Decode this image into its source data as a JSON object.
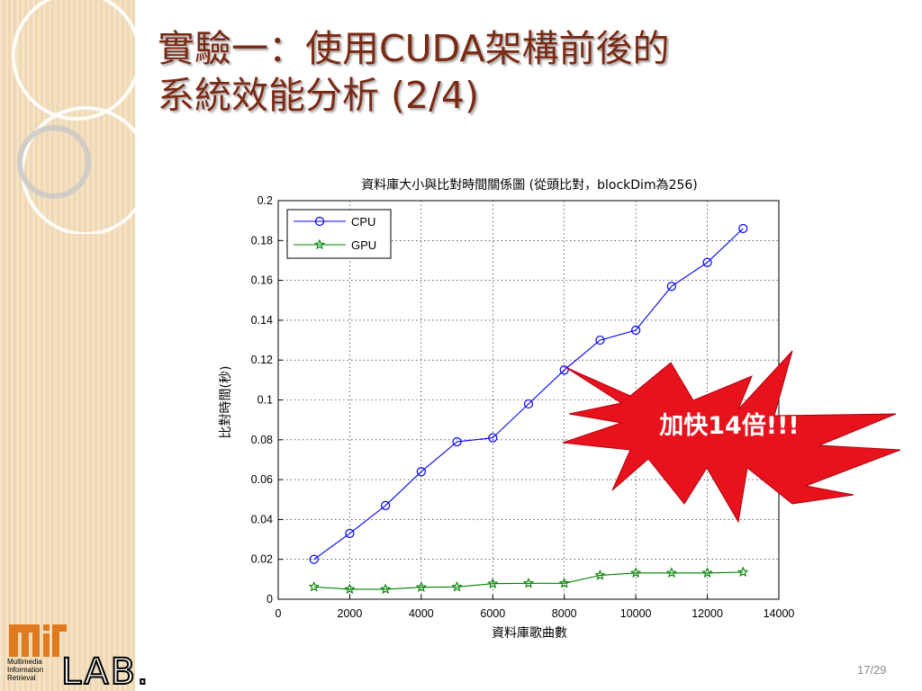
{
  "slide": {
    "title_line1": "實驗一：使用CUDA架構前後的",
    "title_line2": "系統效能分析 (2/4)",
    "page_number": "17/29"
  },
  "callout": {
    "text": "加快14倍!!!",
    "fill": "#e8121c"
  },
  "logo": {
    "mark": "miR",
    "lab": "LAB.",
    "caption_lines": [
      "Multimedia",
      "Information",
      "Retrieval"
    ]
  },
  "chart_data": {
    "type": "line",
    "title": "資料庫大小與比對時間關係圖 (從頭比對，blockDim為256)",
    "xlabel": "資料庫歌曲數",
    "ylabel": "比對時間(秒)",
    "xlim": [
      0,
      14000
    ],
    "ylim": [
      0,
      0.2
    ],
    "xticks": [
      "0",
      "2000",
      "4000",
      "6000",
      "8000",
      "10000",
      "12000",
      "14000"
    ],
    "yticks": [
      "0",
      "0.02",
      "0.04",
      "0.06",
      "0.08",
      "0.1",
      "0.12",
      "0.14",
      "0.16",
      "0.18",
      "0.2"
    ],
    "grid": true,
    "legend_position": "top-left",
    "x": [
      1000,
      2000,
      3000,
      4000,
      5000,
      6000,
      7000,
      8000,
      9000,
      10000,
      11000,
      12000,
      13000
    ],
    "series": [
      {
        "name": "CPU",
        "color": "#0000ff",
        "marker": "circle",
        "values": [
          0.02,
          0.033,
          0.047,
          0.064,
          0.079,
          0.081,
          0.098,
          0.115,
          0.13,
          0.135,
          0.157,
          0.169,
          0.186
        ]
      },
      {
        "name": "GPU",
        "color": "#008000",
        "marker": "star",
        "values": [
          0.0062,
          0.005,
          0.005,
          0.006,
          0.0062,
          0.0078,
          0.008,
          0.008,
          0.012,
          0.0132,
          0.0132,
          0.0132,
          0.0136
        ]
      }
    ]
  }
}
